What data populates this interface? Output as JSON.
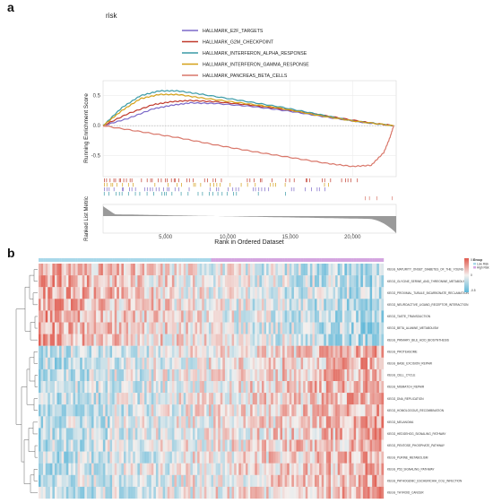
{
  "panel_a": {
    "letter": "a",
    "title": "risk",
    "legend": [
      {
        "label": "HALLMARK_E2F_TARGETS",
        "color": "#7b68c8"
      },
      {
        "label": "HALLMARK_G2M_CHECKPOINT",
        "color": "#c0392b"
      },
      {
        "label": "HALLMARK_INTERFERON_ALPHA_RESPONSE",
        "color": "#3a9aa6"
      },
      {
        "label": "HALLMARK_INTERFERON_GAMMA_RESPONSE",
        "color": "#d4a017"
      },
      {
        "label": "HALLMARK_PANCREAS_BETA_CELLS",
        "color": "#d9776a"
      }
    ]
  },
  "panel_b": {
    "letter": "b",
    "legend_title": "Group",
    "group_labels": [
      "Low Risk",
      "High Risk"
    ],
    "group_colors": [
      "#a8d8ea",
      "#d4a5e0"
    ],
    "scale_labels": [
      "0.5",
      "0",
      "-0.5"
    ],
    "color_high": "#e05a4e",
    "color_mid": "#f4f0ee",
    "color_low": "#5bb6d8",
    "rows": [
      "KEGG_MATURITY_ONSET_DIABETES_OF_THE_YOUNG",
      "KEGG_GLYCINE_SERINE_AND_THREONINE_METABOLISM",
      "KEGG_PROXIMAL_TUBULE_BICARBONATE_RECLAMATION",
      "KEGG_NEUROACTIVE_LIGAND_RECEPTOR_INTERACTION",
      "KEGG_TASTE_TRANSDUCTION",
      "KEGG_BETA_ALANINE_METABOLISM",
      "KEGG_PRIMARY_BILE_ACID_BIOSYNTHESIS",
      "KEGG_PROTEASOME",
      "KEGG_BASE_EXCISION_REPAIR",
      "KEGG_CELL_CYCLE",
      "KEGG_MISMATCH_REPAIR",
      "KEGG_DNA_REPLICATION",
      "KEGG_HOMOLOGOUS_RECOMBINATION",
      "KEGG_MELANOMA",
      "KEGG_HEDGEHOG_SIGNALING_PATHWAY",
      "KEGG_PENTOSE_PHOSPHATE_PATHWAY",
      "KEGG_PURINE_METABOLISM",
      "KEGG_P53_SIGNALING_PATHWAY",
      "KEGG_PATHOGENIC_ESCHERICHIA_COLI_INFECTION",
      "KEGG_THYROID_CANCER"
    ]
  },
  "chart_data": [
    {
      "type": "line",
      "ylabel": "Running Enrichment Score",
      "ylim": [
        -0.85,
        0.75
      ],
      "y_ticks": [
        "0.5",
        "0.0",
        "-0.5"
      ],
      "xlim": [
        0,
        23500
      ],
      "grid": true,
      "series": [
        {
          "name": "HALLMARK_E2F_TARGETS",
          "x": [
            0,
            2000,
            4000,
            5500,
            7000,
            9000,
            12000,
            15000,
            18000,
            21000,
            23300
          ],
          "values": [
            0.0,
            0.12,
            0.28,
            0.34,
            0.38,
            0.37,
            0.32,
            0.24,
            0.14,
            0.05,
            0.0
          ]
        },
        {
          "name": "HALLMARK_G2M_CHECKPOINT",
          "x": [
            0,
            2000,
            4000,
            5500,
            7000,
            9000,
            12000,
            15000,
            18000,
            21000,
            23300
          ],
          "values": [
            0.0,
            0.2,
            0.35,
            0.4,
            0.42,
            0.4,
            0.34,
            0.26,
            0.16,
            0.06,
            0.0
          ]
        },
        {
          "name": "HALLMARK_INTERFERON_ALPHA_RESPONSE",
          "x": [
            0,
            1500,
            3000,
            4500,
            6000,
            8000,
            11000,
            14000,
            17000,
            20000,
            23300
          ],
          "values": [
            0.0,
            0.3,
            0.5,
            0.58,
            0.58,
            0.52,
            0.42,
            0.32,
            0.2,
            0.08,
            0.0
          ]
        },
        {
          "name": "HALLMARK_INTERFERON_GAMMA_RESPONSE",
          "x": [
            0,
            1500,
            3000,
            4500,
            6000,
            8000,
            11000,
            14000,
            17000,
            20000,
            23300
          ],
          "values": [
            0.0,
            0.25,
            0.45,
            0.52,
            0.52,
            0.46,
            0.38,
            0.3,
            0.18,
            0.08,
            0.0
          ]
        },
        {
          "name": "HALLMARK_PANCREAS_BETA_CELLS",
          "x": [
            0,
            3000,
            6000,
            9000,
            12000,
            15000,
            18000,
            20000,
            21500,
            22500,
            23000,
            23300
          ],
          "values": [
            0.0,
            -0.1,
            -0.2,
            -0.32,
            -0.43,
            -0.53,
            -0.63,
            -0.68,
            -0.66,
            -0.45,
            -0.2,
            0.0
          ]
        }
      ]
    },
    {
      "type": "area",
      "ylabel": "Ranked List Metric",
      "xlabel": "Rank in Ordered Dataset",
      "x_ticks": [
        "5,000",
        "10,000",
        "15,000",
        "20,000"
      ],
      "x_tick_values": [
        5000,
        10000,
        15000,
        20000
      ],
      "xlim": [
        0,
        23500
      ]
    },
    {
      "type": "heatmap",
      "rows": 20,
      "columns": 150,
      "value_range": [
        -0.5,
        0.5
      ]
    }
  ]
}
